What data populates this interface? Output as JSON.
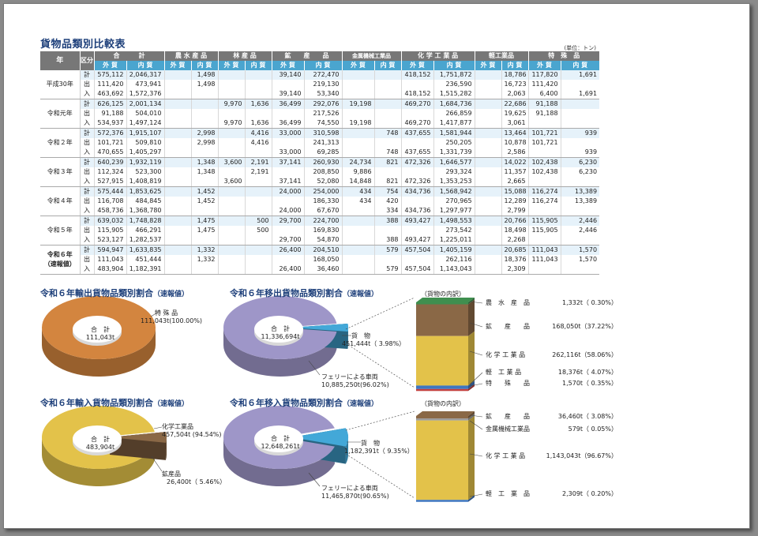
{
  "title": "貨物品類別比較表",
  "unit": "(単位：トン)",
  "table": {
    "hdr_year": "年",
    "hdr_kubun": "区分",
    "categories": [
      "合　　　計",
      "農 水 産 品",
      "林 産 品",
      "鉱　　産　　品",
      "金属機械工業品",
      "化 学 工 業 品",
      "軽工業品",
      "特　殊　品"
    ],
    "sub": [
      "外 貿",
      "内 貿"
    ],
    "groups": [
      {
        "year": "平成30年",
        "rows": [
          {
            "t": "計",
            "v": [
              "575,112",
              "2,046,317",
              "",
              "1,498",
              "",
              "",
              "39,140",
              "272,470",
              "",
              "",
              "418,152",
              "1,751,872",
              "",
              "18,786",
              "117,820",
              "1,691"
            ]
          },
          {
            "t": "出",
            "v": [
              "111,420",
              "473,941",
              "",
              "1,498",
              "",
              "",
              "",
              "219,130",
              "",
              "",
              "",
              "236,590",
              "",
              "16,723",
              "111,420",
              ""
            ]
          },
          {
            "t": "入",
            "v": [
              "463,692",
              "1,572,376",
              "",
              "",
              "",
              "",
              "39,140",
              "53,340",
              "",
              "",
              "418,152",
              "1,515,282",
              "",
              "2,063",
              "6,400",
              "1,691"
            ]
          }
        ]
      },
      {
        "year": "令和元年",
        "rows": [
          {
            "t": "計",
            "v": [
              "626,125",
              "2,001,134",
              "",
              "",
              "9,970",
              "1,636",
              "36,499",
              "292,076",
              "19,198",
              "",
              "469,270",
              "1,684,736",
              "",
              "22,686",
              "91,188",
              ""
            ]
          },
          {
            "t": "出",
            "v": [
              "91,188",
              "504,010",
              "",
              "",
              "",
              "",
              "",
              "217,526",
              "",
              "",
              "",
              "266,859",
              "",
              "19,625",
              "91,188",
              ""
            ]
          },
          {
            "t": "入",
            "v": [
              "534,937",
              "1,497,124",
              "",
              "",
              "9,970",
              "1,636",
              "36,499",
              "74,550",
              "19,198",
              "",
              "469,270",
              "1,417,877",
              "",
              "3,061",
              "",
              ""
            ]
          }
        ]
      },
      {
        "year": "令和２年",
        "rows": [
          {
            "t": "計",
            "v": [
              "572,376",
              "1,915,107",
              "",
              "2,998",
              "",
              "4,416",
              "33,000",
              "310,598",
              "",
              "748",
              "437,655",
              "1,581,944",
              "",
              "13,464",
              "101,721",
              "939"
            ]
          },
          {
            "t": "出",
            "v": [
              "101,721",
              "509,810",
              "",
              "2,998",
              "",
              "4,416",
              "",
              "241,313",
              "",
              "",
              "",
              "250,205",
              "",
              "10,878",
              "101,721",
              ""
            ]
          },
          {
            "t": "入",
            "v": [
              "470,655",
              "1,405,297",
              "",
              "",
              "",
              "",
              "33,000",
              "69,285",
              "",
              "748",
              "437,655",
              "1,331,739",
              "",
              "2,586",
              "",
              "939"
            ]
          }
        ]
      },
      {
        "year": "令和３年",
        "rows": [
          {
            "t": "計",
            "v": [
              "640,239",
              "1,932,119",
              "",
              "1,348",
              "3,600",
              "2,191",
              "37,141",
              "260,930",
              "24,734",
              "821",
              "472,326",
              "1,646,577",
              "",
              "14,022",
              "102,438",
              "6,230"
            ]
          },
          {
            "t": "出",
            "v": [
              "112,324",
              "523,300",
              "",
              "1,348",
              "",
              "2,191",
              "",
              "208,850",
              "9,886",
              "",
              "",
              "293,324",
              "",
              "11,357",
              "102,438",
              "6,230"
            ]
          },
          {
            "t": "入",
            "v": [
              "527,915",
              "1,408,819",
              "",
              "",
              "3,600",
              "",
              "37,141",
              "52,080",
              "14,848",
              "821",
              "472,326",
              "1,353,253",
              "",
              "2,665",
              "",
              ""
            ]
          }
        ]
      },
      {
        "year": "令和４年",
        "rows": [
          {
            "t": "計",
            "v": [
              "575,444",
              "1,853,625",
              "",
              "1,452",
              "",
              "",
              "24,000",
              "254,000",
              "434",
              "754",
              "434,736",
              "1,568,942",
              "",
              "15,088",
              "116,274",
              "13,389"
            ]
          },
          {
            "t": "出",
            "v": [
              "116,708",
              "484,845",
              "",
              "1,452",
              "",
              "",
              "",
              "186,330",
              "434",
              "420",
              "",
              "270,965",
              "",
              "12,289",
              "116,274",
              "13,389"
            ]
          },
          {
            "t": "入",
            "v": [
              "458,736",
              "1,368,780",
              "",
              "",
              "",
              "",
              "24,000",
              "67,670",
              "",
              "334",
              "434,736",
              "1,297,977",
              "",
              "2,799",
              "",
              ""
            ]
          }
        ]
      },
      {
        "year": "令和５年",
        "rows": [
          {
            "t": "計",
            "v": [
              "639,032",
              "1,748,828",
              "",
              "1,475",
              "",
              "500",
              "29,700",
              "224,700",
              "",
              "388",
              "493,427",
              "1,498,553",
              "",
              "20,766",
              "115,905",
              "2,446"
            ]
          },
          {
            "t": "出",
            "v": [
              "115,905",
              "466,291",
              "",
              "1,475",
              "",
              "500",
              "",
              "169,830",
              "",
              "",
              "",
              "273,542",
              "",
              "18,498",
              "115,905",
              "2,446"
            ]
          },
          {
            "t": "入",
            "v": [
              "523,127",
              "1,282,537",
              "",
              "",
              "",
              "",
              "29,700",
              "54,870",
              "",
              "388",
              "493,427",
              "1,225,011",
              "",
              "2,268",
              "",
              ""
            ]
          }
        ]
      },
      {
        "year": "令和６年",
        "year2": "（速報値）",
        "bold": true,
        "rows": [
          {
            "t": "計",
            "v": [
              "594,947",
              "1,633,835",
              "",
              "1,332",
              "",
              "",
              "26,400",
              "204,510",
              "",
              "579",
              "457,504",
              "1,405,159",
              "",
              "20,685",
              "111,043",
              "1,570"
            ]
          },
          {
            "t": "出",
            "v": [
              "111,043",
              "451,444",
              "",
              "1,332",
              "",
              "",
              "",
              "168,050",
              "",
              "",
              "",
              "262,116",
              "",
              "18,376",
              "111,043",
              "1,570"
            ]
          },
          {
            "t": "入",
            "v": [
              "483,904",
              "1,182,391",
              "",
              "",
              "",
              "",
              "26,400",
              "36,460",
              "",
              "579",
              "457,504",
              "1,143,043",
              "",
              "2,309",
              "",
              ""
            ]
          }
        ]
      }
    ]
  },
  "sections": {
    "export_title": "令和６年輸出貨物品類別割合",
    "move_out_title": "令和６年移出貨物品類別割合",
    "import_title": "令和６年輸入貨物品類別割合",
    "move_in_title": "令和６年移入貨物品類別割合",
    "prelim": "（速報値）"
  },
  "pies": {
    "export": {
      "center_label": "合　計",
      "center_value": "111,043t",
      "slices": [
        {
          "label": "特 殊 品",
          "value": "111,043t(100.00%)",
          "pct": 100.0,
          "color": "#d3853f"
        }
      ]
    },
    "move_out": {
      "center_label": "合　計",
      "center_value": "11,336,694t",
      "slices": [
        {
          "label": "貨　物",
          "value": "451,444t（ 3.98%）",
          "pct": 3.98,
          "color": "#43a8d8"
        },
        {
          "label": "フェリーによる車両",
          "value": "10,885,250t(96.02%)",
          "pct": 96.02,
          "color": "#9e96c8"
        }
      ]
    },
    "import": {
      "center_label": "合　計",
      "center_value": "483,904t",
      "slices": [
        {
          "label": "化学工業品",
          "value": "457,504t (94.54%)",
          "pct": 94.54,
          "color": "#e3c24a"
        },
        {
          "label": "鉱産品",
          "value": "26,400t（ 5.46%）",
          "pct": 5.46,
          "color": "#8a6846"
        }
      ]
    },
    "move_in": {
      "center_label": "合　計",
      "center_value": "12,648,261t",
      "slices": [
        {
          "label": "貨　物",
          "value": "1,182,391t（ 9.35%）",
          "pct": 9.35,
          "color": "#43a8d8"
        },
        {
          "label": "フェリーによる車両",
          "value": "11,465,870t(90.65%)",
          "pct": 90.65,
          "color": "#9e96c8"
        }
      ]
    }
  },
  "breakdowns": {
    "move_out": {
      "title": "（貨物の内訳）",
      "items": [
        {
          "label": "農　水　産　品",
          "value": "1,332t（ 0.30%）",
          "pct": 0.3,
          "color": "#3f8f4f"
        },
        {
          "label": "鉱　　産　　品",
          "value": "168,050t（37.22%）",
          "pct": 37.22,
          "color": "#8a6846"
        },
        {
          "label": "化 学 工 業 品",
          "value": "262,116t（58.06%）",
          "pct": 58.06,
          "color": "#e3c24a"
        },
        {
          "label": "軽　工 業 品",
          "value": "18,376t（ 4.07%）",
          "pct": 4.07,
          "color": "#3f76c0"
        },
        {
          "label": "特　　殊　　品",
          "value": "1,570t（ 0.35%）",
          "pct": 0.35,
          "color": "#c24040"
        }
      ]
    },
    "move_in": {
      "title": "（貨物の内訳）",
      "items": [
        {
          "label": "鉱　　産　　品",
          "value": "36,460t（ 3.08%）",
          "pct": 3.08,
          "color": "#8a6846"
        },
        {
          "label": "金属機械工業品",
          "value": "579t（ 0.05%）",
          "pct": 0.05,
          "color": "#999999"
        },
        {
          "label": "化 学 工 業 品",
          "value": "1,143,043t（96.67%）",
          "pct": 96.67,
          "color": "#e3c24a"
        },
        {
          "label": "軽　工　業　品",
          "value": "2,309t（ 0.20%）",
          "pct": 0.2,
          "color": "#3f76c0"
        }
      ]
    }
  }
}
